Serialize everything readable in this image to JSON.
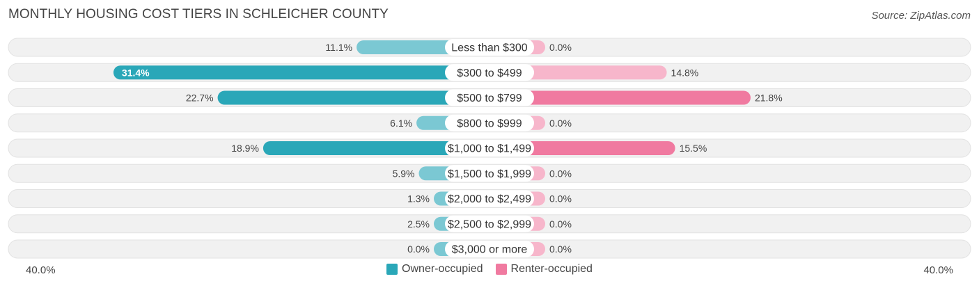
{
  "title": "MONTHLY HOUSING COST TIERS IN SCHLEICHER COUNTY",
  "source": "Source: ZipAtlas.com",
  "axis": {
    "left_label": "40.0%",
    "right_label": "40.0%"
  },
  "legend": [
    {
      "label": "Owner-occupied",
      "color": "#2aa7b8"
    },
    {
      "label": "Renter-occupied",
      "color": "#f07aa0"
    }
  ],
  "chart_data": {
    "type": "bar",
    "orientation": "horizontal-diverging",
    "xlim": [
      -40,
      40
    ],
    "categories": [
      "Less than $300",
      "$300 to $499",
      "$500 to $799",
      "$800 to $999",
      "$1,000 to $1,499",
      "$1,500 to $1,999",
      "$2,000 to $2,499",
      "$2,500 to $2,999",
      "$3,000 or more"
    ],
    "series": [
      {
        "name": "Owner-occupied",
        "side": "left",
        "color": "#2aa7b8",
        "values": [
          11.1,
          31.4,
          22.7,
          6.1,
          18.9,
          5.9,
          1.3,
          2.5,
          0.0
        ],
        "labels": [
          "11.1%",
          "31.4%",
          "22.7%",
          "6.1%",
          "18.9%",
          "5.9%",
          "1.3%",
          "2.5%",
          "0.0%"
        ]
      },
      {
        "name": "Renter-occupied",
        "side": "right",
        "color": "#f07aa0",
        "values": [
          0.0,
          14.8,
          21.8,
          0.0,
          15.5,
          0.0,
          0.0,
          0.0,
          0.0
        ],
        "labels": [
          "0.0%",
          "14.8%",
          "21.8%",
          "0.0%",
          "15.5%",
          "0.0%",
          "0.0%",
          "0.0%",
          "0.0%"
        ]
      }
    ]
  }
}
